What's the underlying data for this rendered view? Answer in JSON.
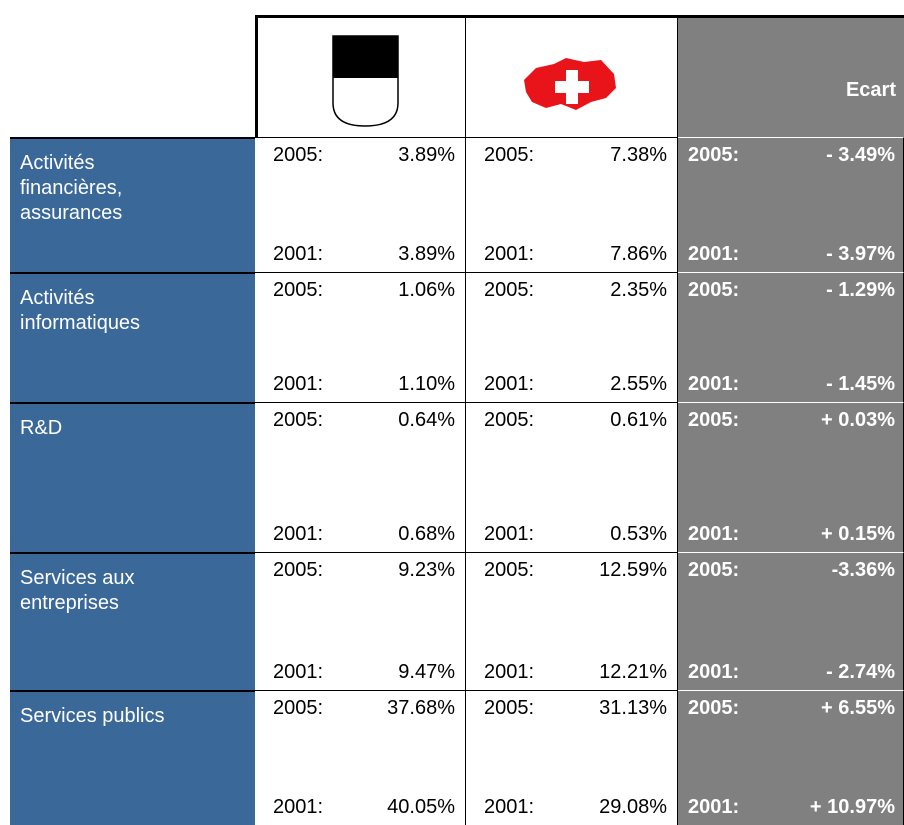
{
  "header": {
    "ecart": "Ecart"
  },
  "rows": [
    {
      "label": [
        "Activités",
        "financières,",
        "assurances"
      ],
      "cells": [
        [
          {
            "year": "2005:",
            "value": "3.89%"
          },
          {
            "year": "2001:",
            "value": "3.89%"
          }
        ],
        [
          {
            "year": "2005:",
            "value": "7.38%"
          },
          {
            "year": "2001:",
            "value": "7.86%"
          }
        ],
        [
          {
            "year": "2005:",
            "value": "- 3.49%"
          },
          {
            "year": "2001:",
            "value": "- 3.97%"
          }
        ]
      ]
    },
    {
      "label": [
        "Activités",
        "informatiques"
      ],
      "cells": [
        [
          {
            "year": "2005:",
            "value": "1.06%"
          },
          {
            "year": "2001:",
            "value": "1.10%"
          }
        ],
        [
          {
            "year": "2005:",
            "value": "2.35%"
          },
          {
            "year": "2001:",
            "value": "2.55%"
          }
        ],
        [
          {
            "year": "2005:",
            "value": "- 1.29%"
          },
          {
            "year": "2001:",
            "value": "- 1.45%"
          }
        ]
      ]
    },
    {
      "label": [
        "R&D"
      ],
      "cells": [
        [
          {
            "year": "2005:",
            "value": "0.64%"
          },
          {
            "year": "2001:",
            "value": "0.68%"
          }
        ],
        [
          {
            "year": "2005:",
            "value": "0.61%"
          },
          {
            "year": "2001:",
            "value": "0.53%"
          }
        ],
        [
          {
            "year": "2005:",
            "value": "+ 0.03%"
          },
          {
            "year": "2001:",
            "value": "+ 0.15%"
          }
        ]
      ]
    },
    {
      "label": [
        "Services aux",
        "entreprises"
      ],
      "cells": [
        [
          {
            "year": "2005:",
            "value": "9.23%"
          },
          {
            "year": "2001:",
            "value": "9.47%"
          }
        ],
        [
          {
            "year": "2005:",
            "value": "12.59%"
          },
          {
            "year": "2001:",
            "value": "12.21%"
          }
        ],
        [
          {
            "year": "2005:",
            "value": "-3.36%"
          },
          {
            "year": "2001:",
            "value": "- 2.74%"
          }
        ]
      ]
    },
    {
      "label": [
        "Services publics"
      ],
      "cells": [
        [
          {
            "year": "2005:",
            "value": "37.68%"
          },
          {
            "year": "2001:",
            "value": "40.05%"
          }
        ],
        [
          {
            "year": "2005:",
            "value": "31.13%"
          },
          {
            "year": "2001:",
            "value": "29.08%"
          }
        ],
        [
          {
            "year": "2005:",
            "value": "+ 6.55%"
          },
          {
            "year": "2001:",
            "value": "+ 10.97%"
          }
        ]
      ]
    }
  ]
}
